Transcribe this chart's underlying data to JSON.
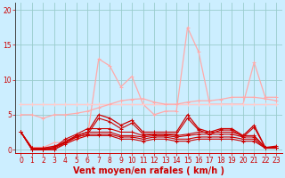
{
  "bg_color": "#cceeff",
  "grid_color": "#99cccc",
  "x_ticks": [
    0,
    1,
    2,
    3,
    4,
    5,
    6,
    7,
    8,
    9,
    10,
    11,
    12,
    13,
    14,
    15,
    16,
    17,
    18,
    19,
    20,
    21,
    22,
    23
  ],
  "ylim": [
    -0.5,
    21
  ],
  "yticks": [
    0,
    5,
    10,
    15,
    20
  ],
  "xlabel": "Vent moyen/en rafales ( km/h )",
  "xlabel_color": "#cc0000",
  "xlabel_fontsize": 7,
  "series_light_flat1": [
    6.5,
    6.5,
    6.5,
    6.5,
    6.5,
    6.5,
    6.5,
    6.5,
    6.5,
    6.5,
    6.5,
    6.5,
    6.5,
    6.5,
    6.5,
    6.5,
    6.5,
    6.5,
    6.5,
    6.5,
    6.5,
    6.5,
    6.5,
    6.5
  ],
  "series_light_flat2": [
    6.5,
    6.5,
    6.5,
    6.5,
    6.5,
    6.5,
    6.5,
    6.5,
    6.5,
    6.5,
    6.5,
    6.5,
    6.5,
    6.5,
    6.5,
    6.5,
    6.5,
    6.5,
    6.5,
    6.5,
    6.5,
    6.5,
    6.5,
    6.5
  ],
  "series_light_medium": [
    5.0,
    5.0,
    4.5,
    5.0,
    5.0,
    5.2,
    5.5,
    6.0,
    6.5,
    7.0,
    7.2,
    7.3,
    6.8,
    6.5,
    6.5,
    6.8,
    7.0,
    7.0,
    7.2,
    7.5,
    7.5,
    7.5,
    7.3,
    7.0
  ],
  "series_light_spiky": [
    2.5,
    0.3,
    0.3,
    1.0,
    1.0,
    1.5,
    2.0,
    13.0,
    12.0,
    9.0,
    10.5,
    6.5,
    5.0,
    5.5,
    5.5,
    17.5,
    14.0,
    6.5,
    6.5,
    6.5,
    6.5,
    12.5,
    7.5,
    7.5
  ],
  "series_dark_spiky1": [
    2.5,
    0.2,
    0.2,
    0.5,
    1.0,
    2.0,
    2.5,
    5.0,
    4.5,
    3.5,
    4.2,
    2.5,
    2.5,
    2.5,
    2.5,
    5.0,
    3.0,
    2.5,
    3.0,
    3.0,
    2.0,
    3.5,
    0.3,
    0.5
  ],
  "series_dark_spiky2": [
    2.5,
    0.2,
    0.2,
    0.3,
    1.0,
    1.8,
    2.2,
    4.5,
    4.0,
    3.0,
    3.8,
    2.2,
    2.2,
    2.2,
    2.2,
    4.5,
    2.8,
    2.2,
    2.8,
    2.8,
    1.8,
    3.2,
    0.3,
    0.3
  ],
  "series_dark_flat1": [
    2.5,
    0.0,
    0.0,
    0.3,
    1.5,
    2.2,
    3.0,
    3.0,
    3.0,
    2.5,
    2.5,
    2.0,
    2.2,
    2.2,
    2.0,
    2.2,
    2.5,
    2.5,
    2.5,
    2.5,
    2.0,
    2.0,
    0.3,
    0.3
  ],
  "series_dark_flat2": [
    2.5,
    0.0,
    0.0,
    0.2,
    1.2,
    2.0,
    2.5,
    2.5,
    2.5,
    2.0,
    2.0,
    1.8,
    2.0,
    2.0,
    1.8,
    2.0,
    2.2,
    2.2,
    2.2,
    2.2,
    1.8,
    1.8,
    0.3,
    0.3
  ],
  "series_dark_flat3": [
    2.5,
    0.0,
    0.0,
    0.0,
    1.0,
    1.8,
    2.2,
    2.2,
    2.2,
    1.8,
    1.8,
    1.5,
    1.8,
    1.8,
    1.5,
    1.5,
    1.8,
    1.8,
    1.8,
    1.8,
    1.5,
    1.5,
    0.2,
    0.2
  ],
  "series_dark_flat4": [
    2.5,
    0.0,
    0.0,
    0.0,
    0.8,
    1.5,
    2.0,
    2.0,
    2.0,
    1.5,
    1.5,
    1.2,
    1.5,
    1.5,
    1.2,
    1.2,
    1.5,
    1.5,
    1.5,
    1.5,
    1.2,
    1.2,
    0.2,
    0.2
  ]
}
